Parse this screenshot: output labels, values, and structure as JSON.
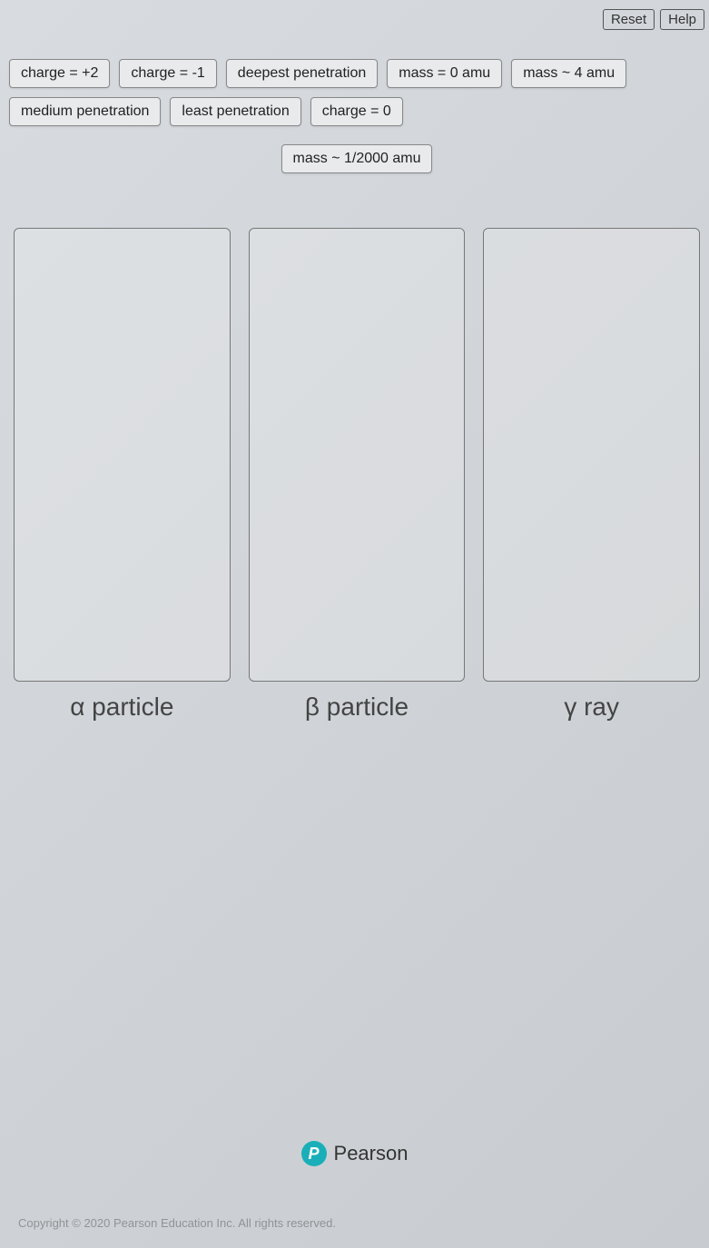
{
  "topButtons": {
    "reset": "Reset",
    "help": "Help"
  },
  "chips": {
    "row1": [
      "charge = +2",
      "charge = -1",
      "deepest penetration",
      "mass = 0 amu",
      "mass ~ 4 amu",
      "medium penetration",
      "least penetration",
      "charge = 0"
    ],
    "row2": [
      "mass ~ 1/2000 amu"
    ]
  },
  "dropZones": [
    {
      "label": "α particle"
    },
    {
      "label": "β particle"
    },
    {
      "label": "γ ray"
    }
  ],
  "footer": {
    "logoLetter": "P",
    "brand": "Pearson",
    "copyright": "Copyright © 2020 Pearson Education Inc. All rights reserved."
  },
  "colors": {
    "chipBg": "#e8eaec",
    "chipBorder": "#888888",
    "boxBorder": "#777777",
    "logoBg": "#1aafb8",
    "textPrimary": "#333333"
  }
}
